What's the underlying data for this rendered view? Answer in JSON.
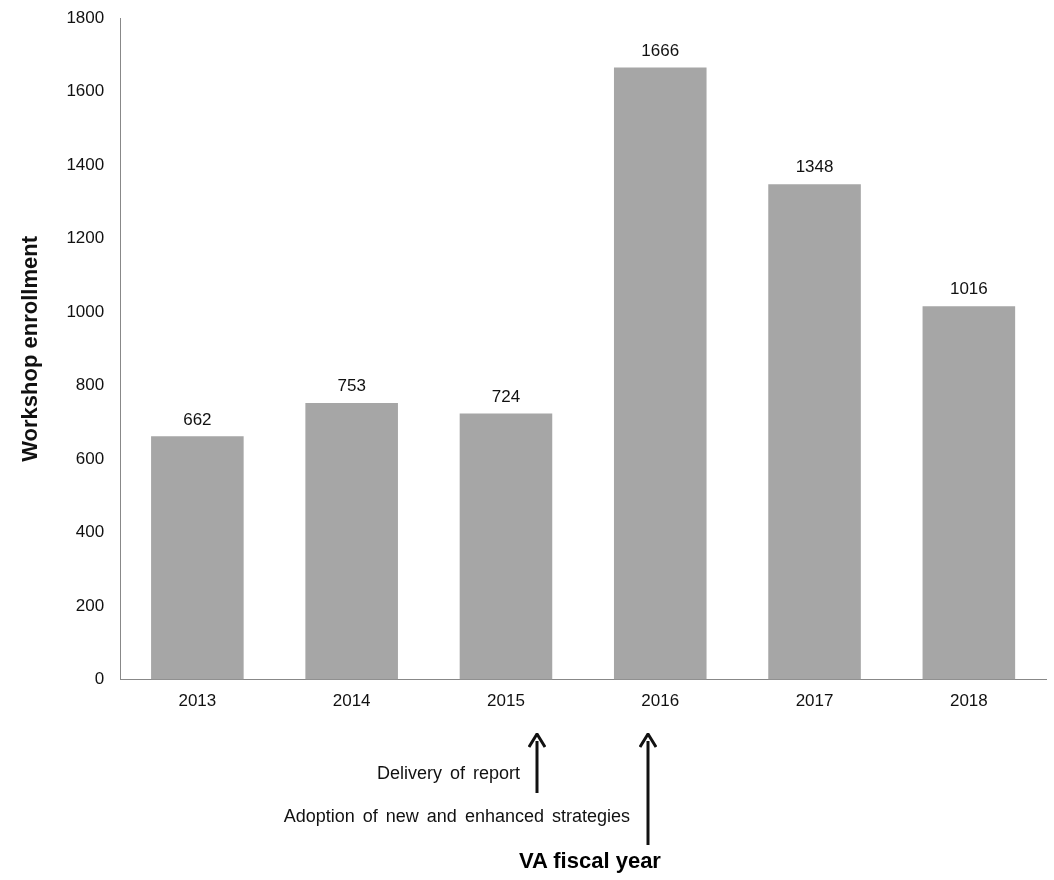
{
  "chart_data": {
    "type": "bar",
    "ylabel": "Workshop enrollment",
    "categories": [
      "2013",
      "2014",
      "2015",
      "2016",
      "2017",
      "2018"
    ],
    "values": [
      662,
      753,
      724,
      1666,
      1348,
      1016
    ],
    "color": "#a6a6a6",
    "ylim": [
      0,
      1800
    ],
    "yticks": [
      0,
      200,
      400,
      600,
      800,
      1000,
      1200,
      1400,
      1600,
      1800
    ],
    "grid": false,
    "legend": false,
    "data_labels": true,
    "annotations": [
      "Delivery of report",
      "Adoption of new and enhanced strategies",
      "VA fiscal year"
    ]
  }
}
